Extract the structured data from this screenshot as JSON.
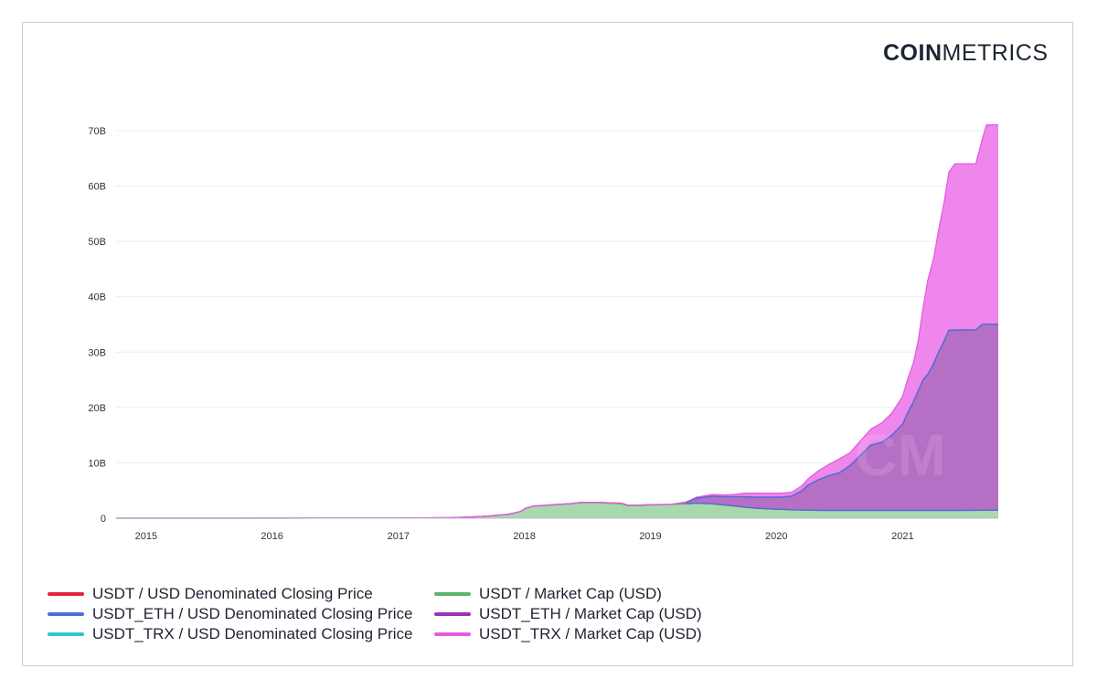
{
  "brand": {
    "bold": "COIN",
    "light": "METRICS"
  },
  "watermark": "CM",
  "chart_data": {
    "type": "area",
    "stacked": true,
    "x_ticks": [
      "2015",
      "2016",
      "2017",
      "2018",
      "2019",
      "2020",
      "2021"
    ],
    "y_ticks": [
      "0",
      "10B",
      "20B",
      "30B",
      "40B",
      "50B",
      "60B",
      "70B"
    ],
    "ylim": [
      0,
      70
    ],
    "y_unit": "B",
    "xlim": [
      "2014-10-06",
      "2021-10-05"
    ],
    "grid": true,
    "legend_position": "bottom",
    "legend": [
      {
        "name": "USDT / USD Denominated Closing Price",
        "color": "#e3263c"
      },
      {
        "name": "USDT_ETH / USD Denominated Closing Price",
        "color": "#4a6fd6"
      },
      {
        "name": "USDT_TRX / USD Denominated Closing Price",
        "color": "#2cc6d1"
      },
      {
        "name": "USDT / Market Cap (USD)",
        "color": "#5cb56b"
      },
      {
        "name": "USDT_ETH / Market Cap (USD)",
        "color": "#9b34b0"
      },
      {
        "name": "USDT_TRX / Market Cap (USD)",
        "color": "#e85be0"
      }
    ],
    "series": [
      {
        "name": "USDT / Market Cap (USD)",
        "color": "#5cb56b",
        "points": [
          [
            "2014-10-06",
            0.0
          ],
          [
            "2015-06-01",
            0.0
          ],
          [
            "2016-06-01",
            0.01
          ],
          [
            "2017-01-01",
            0.01
          ],
          [
            "2017-06-01",
            0.1
          ],
          [
            "2017-09-01",
            0.3
          ],
          [
            "2017-11-15",
            0.7
          ],
          [
            "2017-12-20",
            1.2
          ],
          [
            "2018-01-05",
            1.8
          ],
          [
            "2018-01-28",
            2.2
          ],
          [
            "2018-03-01",
            2.3
          ],
          [
            "2018-04-01",
            2.45
          ],
          [
            "2018-05-15",
            2.6
          ],
          [
            "2018-06-15",
            2.8
          ],
          [
            "2018-08-01",
            2.8
          ],
          [
            "2018-09-01",
            2.7
          ],
          [
            "2018-10-10",
            2.6
          ],
          [
            "2018-10-25",
            2.3
          ],
          [
            "2018-12-01",
            2.3
          ],
          [
            "2019-01-15",
            2.4
          ],
          [
            "2019-03-01",
            2.5
          ],
          [
            "2019-04-15",
            2.6
          ],
          [
            "2019-05-15",
            2.7
          ],
          [
            "2019-07-01",
            2.6
          ],
          [
            "2019-08-01",
            2.4
          ],
          [
            "2019-09-01",
            2.2
          ],
          [
            "2019-10-01",
            2.0
          ],
          [
            "2019-11-01",
            1.8
          ],
          [
            "2019-12-01",
            1.7
          ],
          [
            "2020-01-15",
            1.6
          ],
          [
            "2020-02-15",
            1.5
          ],
          [
            "2020-04-01",
            1.45
          ],
          [
            "2020-06-01",
            1.4
          ],
          [
            "2020-09-01",
            1.4
          ],
          [
            "2021-01-01",
            1.4
          ],
          [
            "2021-06-01",
            1.4
          ],
          [
            "2021-10-05",
            1.45
          ]
        ]
      },
      {
        "name": "USDT_ETH / Market Cap (USD)",
        "color": "#9b34b0",
        "points": [
          [
            "2014-10-06",
            0.0
          ],
          [
            "2017-06-01",
            0.0
          ],
          [
            "2017-11-15",
            0.0
          ],
          [
            "2018-01-01",
            0.0
          ],
          [
            "2018-10-25",
            0.1
          ],
          [
            "2019-01-15",
            0.05
          ],
          [
            "2019-03-01",
            0.0
          ],
          [
            "2019-04-15",
            0.3
          ],
          [
            "2019-05-15",
            0.9
          ],
          [
            "2019-07-01",
            1.4
          ],
          [
            "2019-08-01",
            1.5
          ],
          [
            "2019-09-01",
            1.7
          ],
          [
            "2019-10-01",
            1.9
          ],
          [
            "2019-11-01",
            2.0
          ],
          [
            "2019-12-01",
            2.1
          ],
          [
            "2020-01-15",
            2.2
          ],
          [
            "2020-02-15",
            2.5
          ],
          [
            "2020-03-15",
            3.5
          ],
          [
            "2020-04-01",
            4.5
          ],
          [
            "2020-05-01",
            5.5
          ],
          [
            "2020-06-01",
            6.3
          ],
          [
            "2020-07-01",
            6.8
          ],
          [
            "2020-08-01",
            8.1
          ],
          [
            "2020-09-01",
            10.0
          ],
          [
            "2020-10-01",
            11.8
          ],
          [
            "2020-11-01",
            12.3
          ],
          [
            "2020-12-01",
            13.6
          ],
          [
            "2021-01-01",
            15.6
          ],
          [
            "2021-01-15",
            17.6
          ],
          [
            "2021-02-01",
            19.6
          ],
          [
            "2021-02-15",
            21.6
          ],
          [
            "2021-03-01",
            23.6
          ],
          [
            "2021-03-15",
            24.6
          ],
          [
            "2021-04-01",
            26.6
          ],
          [
            "2021-04-15",
            28.6
          ],
          [
            "2021-05-01",
            30.6
          ],
          [
            "2021-05-15",
            32.6
          ],
          [
            "2021-06-01",
            32.6
          ],
          [
            "2021-07-01",
            32.6
          ],
          [
            "2021-08-01",
            32.6
          ],
          [
            "2021-08-20",
            33.6
          ],
          [
            "2021-09-01",
            33.6
          ],
          [
            "2021-10-05",
            33.6
          ]
        ]
      },
      {
        "name": "USDT_TRX / Market Cap (USD)",
        "color": "#e85be0",
        "points": [
          [
            "2014-10-06",
            0.0
          ],
          [
            "2019-03-01",
            0.0
          ],
          [
            "2019-04-15",
            0.0
          ],
          [
            "2019-05-15",
            0.2
          ],
          [
            "2019-07-01",
            0.3
          ],
          [
            "2019-08-01",
            0.3
          ],
          [
            "2019-09-01",
            0.4
          ],
          [
            "2019-10-01",
            0.6
          ],
          [
            "2019-11-01",
            0.7
          ],
          [
            "2019-12-01",
            0.7
          ],
          [
            "2020-01-15",
            0.7
          ],
          [
            "2020-02-15",
            0.7
          ],
          [
            "2020-03-15",
            0.9
          ],
          [
            "2020-04-01",
            1.1
          ],
          [
            "2020-05-01",
            1.6
          ],
          [
            "2020-06-01",
            2.0
          ],
          [
            "2020-07-01",
            2.5
          ],
          [
            "2020-08-01",
            2.3
          ],
          [
            "2020-09-01",
            2.6
          ],
          [
            "2020-10-01",
            2.9
          ],
          [
            "2020-11-01",
            3.5
          ],
          [
            "2020-12-01",
            4.0
          ],
          [
            "2021-01-01",
            5.0
          ],
          [
            "2021-01-15",
            6.0
          ],
          [
            "2021-02-01",
            7.0
          ],
          [
            "2021-02-15",
            9.0
          ],
          [
            "2021-03-01",
            13.0
          ],
          [
            "2021-03-15",
            17.0
          ],
          [
            "2021-04-01",
            19.0
          ],
          [
            "2021-04-15",
            22.0
          ],
          [
            "2021-05-01",
            25.0
          ],
          [
            "2021-05-15",
            28.5
          ],
          [
            "2021-06-01",
            30.0
          ],
          [
            "2021-07-01",
            30.0
          ],
          [
            "2021-08-01",
            30.0
          ],
          [
            "2021-08-20",
            33.5
          ],
          [
            "2021-09-01",
            36.0
          ],
          [
            "2021-10-05",
            36.0
          ]
        ]
      }
    ]
  }
}
